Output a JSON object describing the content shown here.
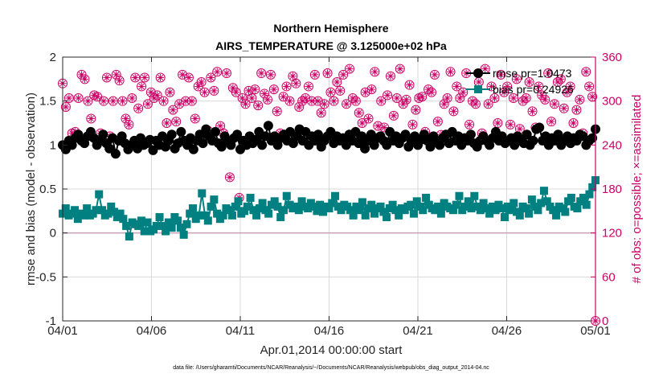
{
  "chart_data": {
    "type": "line",
    "title": "Northern Hemisphere",
    "subtitle": "AIRS_TEMPERATURE @ 3.125000e+02 hPa",
    "xlabel": "Apr.01,2014 00:00:00 start",
    "ylabel": "rmse and bias (model - observation)",
    "y2label": "# of obs: o=possible; ×=assimilated",
    "footnote": "data file: /Users/gharamti/Documents/NCAR/Reanalysis/~/Documents/NCAR/Reanalysis/webpub/obs_diag_output_2014-04.nc",
    "x_ticks": [
      "04/01",
      "04/06",
      "04/11",
      "04/16",
      "04/21",
      "04/26",
      "05/01"
    ],
    "x_tick_days": [
      0,
      5,
      10,
      15,
      20,
      25,
      30
    ],
    "xlim_days": [
      0,
      30
    ],
    "ylim": [
      -1,
      2
    ],
    "y_ticks": [
      "-1",
      "-0.5",
      "0",
      "0.5",
      "1",
      "1.5",
      "2"
    ],
    "y2lim": [
      0,
      360
    ],
    "y2_ticks": [
      "0",
      "60",
      "120",
      "180",
      "240",
      "300",
      "360"
    ],
    "grid": true,
    "legend_position": "top-right",
    "colors": {
      "rmse": "#000000",
      "bias": "#008080",
      "obs": "#cc0066",
      "zero_line": "#c8a0b4",
      "grid": "#d9d9d9"
    },
    "series": [
      {
        "name": "rmse pr=1.0473",
        "axis": "left",
        "values": [
          1.0,
          0.95,
          1.05,
          1.0,
          1.08,
          1.12,
          1.05,
          1.02,
          1.1,
          1.15,
          1.08,
          1.0,
          1.05,
          1.12,
          1.02,
          0.96,
          1.08,
          0.9,
          1.05,
          1.1,
          1.02,
          0.95,
          1.0,
          1.05,
          0.96,
          1.08,
          1.0,
          1.02,
          1.06,
          0.94,
          1.05,
          1.0,
          1.1,
          0.98,
          1.05,
          1.12,
          0.96,
          1.02,
          1.15,
          1.05,
          1.0,
          1.08,
          0.95,
          1.05,
          1.12,
          1.02,
          1.18,
          1.1,
          1.05,
          1.15,
          1.02,
          0.98,
          1.1,
          1.05,
          1.0,
          1.08,
          1.12,
          0.95,
          1.05,
          1.0,
          1.1,
          1.02,
          1.06,
          1.15,
          1.0,
          1.1,
          1.22,
          1.05,
          1.1,
          1.0,
          1.08,
          1.12,
          1.05,
          1.15,
          1.02,
          1.1,
          1.18,
          1.05,
          1.15,
          1.0,
          1.1,
          1.05,
          1.12,
          0.98,
          1.05,
          1.1,
          1.15,
          1.02,
          1.1,
          1.05,
          1.08,
          1.0,
          1.12,
          1.05,
          1.15,
          1.02,
          1.1,
          0.96,
          1.05,
          1.12,
          1.0,
          1.08,
          1.1,
          1.05,
          1.0,
          1.15,
          1.05,
          1.1,
          1.02,
          1.08,
          1.12,
          0.98,
          1.05,
          1.1,
          1.0,
          1.06,
          1.12,
          1.05,
          0.98,
          1.1,
          1.05,
          1.0,
          1.08,
          1.12,
          1.02,
          1.15,
          1.05,
          1.1,
          1.0,
          1.08,
          1.05,
          1.12,
          1.02,
          0.98,
          1.05,
          1.1,
          1.05,
          1.0,
          1.08,
          1.15,
          1.05,
          1.1,
          1.02,
          1.05,
          1.08,
          1.0,
          1.1,
          1.05,
          1.02,
          1.12,
          1.0,
          1.05,
          1.18,
          1.2,
          1.05,
          1.1,
          1.0,
          1.08,
          1.05,
          1.12,
          1.0,
          1.05,
          1.1,
          1.02,
          1.08,
          1.05,
          1.12,
          1.1,
          1.0,
          1.05,
          1.08,
          1.18
        ]
      },
      {
        "name": "bias pr=0.24926",
        "axis": "left",
        "values": [
          0.22,
          0.28,
          0.2,
          0.22,
          0.26,
          0.16,
          0.22,
          0.2,
          0.28,
          0.2,
          0.22,
          0.26,
          0.44,
          0.26,
          0.2,
          0.22,
          0.3,
          0.24,
          0.18,
          0.22,
          0.16,
          0.08,
          -0.04,
          0.12,
          0.1,
          0.08,
          0.14,
          0.02,
          0.12,
          0.02,
          0.04,
          0.08,
          0.18,
          0.08,
          0.02,
          0.12,
          0.06,
          0.18,
          0.14,
          0.06,
          -0.02,
          0.1,
          0.22,
          0.28,
          0.16,
          0.2,
          0.45,
          0.2,
          0.14,
          0.3,
          0.38,
          0.22,
          0.16,
          0.2,
          0.28,
          0.26,
          0.2,
          0.3,
          0.36,
          0.22,
          0.25,
          0.3,
          0.4,
          0.26,
          0.2,
          0.28,
          0.34,
          0.26,
          0.22,
          0.32,
          0.36,
          0.3,
          0.18,
          0.26,
          0.42,
          0.32,
          0.28,
          0.3,
          0.26,
          0.36,
          0.3,
          0.28,
          0.34,
          0.3,
          0.25,
          0.32,
          0.24,
          0.3,
          0.28,
          0.34,
          0.42,
          0.3,
          0.26,
          0.32,
          0.3,
          0.26,
          0.2,
          0.3,
          0.26,
          0.35,
          0.2,
          0.28,
          0.32,
          0.22,
          0.28,
          0.3,
          0.24,
          0.18,
          0.28,
          0.32,
          0.26,
          0.2,
          0.28,
          0.26,
          0.3,
          0.32,
          0.22,
          0.36,
          0.3,
          0.26,
          0.4,
          0.32,
          0.28,
          0.26,
          0.3,
          0.22,
          0.34,
          0.3,
          0.28,
          0.26,
          0.32,
          0.42,
          0.26,
          0.3,
          0.36,
          0.28,
          0.42,
          0.3,
          0.26,
          0.34,
          0.28,
          0.22,
          0.3,
          0.26,
          0.32,
          0.28,
          0.18,
          0.3,
          0.26,
          0.34,
          0.24,
          0.2,
          0.3,
          0.28,
          0.22,
          0.38,
          0.3,
          0.26,
          0.34,
          0.48,
          0.36,
          0.3,
          0.26,
          0.2,
          0.3,
          0.28,
          0.24,
          0.36,
          0.4,
          0.3,
          0.28,
          0.36,
          0.4,
          0.32,
          0.44,
          0.52,
          0.6
        ]
      },
      {
        "name": "# of obs possible",
        "axis": "right",
        "marker": "o",
        "values": [
          324,
          292,
          304,
          256,
          258,
          304,
          336,
          330,
          300,
          276,
          308,
          306,
          256,
          300,
          332,
          252,
          300,
          336,
          328,
          300,
          276,
          268,
          304,
          332,
          290,
          320,
          332,
          296,
          312,
          304,
          308,
          332,
          300,
          270,
          312,
          288,
          272,
          296,
          336,
          300,
          332,
          300,
          276,
          320,
          326,
          312,
          260,
          332,
          314,
          340,
          266,
          256,
          338,
          196,
          318,
          312,
          168,
          304,
          296,
          314,
          304,
          316,
          294,
          338,
          310,
          302,
          336,
          316,
          286,
          256,
          306,
          320,
          300,
          334,
          324,
          292,
          300,
          304,
          320,
          300,
          336,
          300,
          284,
          296,
          338,
          312,
          300,
          326,
          314,
          336,
          296,
          344,
          304,
          300,
          284,
          270,
          312,
          276,
          316,
          340,
          266,
          300,
          264,
          308,
          334,
          280,
          304,
          344,
          296,
          302,
          322,
          268,
          288,
          304,
          306,
          258,
          316,
          312,
          336,
          272,
          254,
          296,
          304,
          340,
          286,
          320,
          304,
          312,
          338,
          268,
          300,
          296,
          326,
          256,
          344,
          296,
          320,
          304,
          270,
          336,
          312,
          320,
          268,
          304,
          330,
          262,
          300,
          304,
          326,
          286,
          264,
          320,
          308,
          302,
          338,
          272,
          296,
          326,
          330,
          290,
          312,
          320,
          270,
          288,
          302,
          256,
          340,
          320,
          306,
          0
        ]
      },
      {
        "name": "# of obs assimilated",
        "axis": "right",
        "marker": "x",
        "values": [
          324,
          292,
          304,
          256,
          258,
          304,
          336,
          330,
          300,
          276,
          308,
          306,
          256,
          300,
          332,
          252,
          300,
          336,
          328,
          300,
          276,
          268,
          304,
          332,
          290,
          320,
          332,
          296,
          312,
          304,
          308,
          332,
          300,
          270,
          312,
          288,
          272,
          296,
          336,
          300,
          332,
          300,
          276,
          320,
          326,
          312,
          260,
          332,
          314,
          340,
          266,
          256,
          338,
          196,
          318,
          312,
          168,
          304,
          296,
          314,
          304,
          316,
          294,
          338,
          310,
          302,
          336,
          316,
          286,
          256,
          306,
          320,
          300,
          334,
          324,
          292,
          300,
          304,
          320,
          300,
          336,
          300,
          284,
          296,
          338,
          312,
          300,
          326,
          314,
          336,
          296,
          344,
          304,
          300,
          284,
          270,
          312,
          276,
          316,
          340,
          266,
          300,
          264,
          308,
          334,
          280,
          304,
          344,
          296,
          302,
          322,
          268,
          288,
          304,
          306,
          258,
          316,
          312,
          336,
          272,
          254,
          296,
          304,
          340,
          286,
          320,
          304,
          312,
          338,
          268,
          300,
          296,
          326,
          256,
          344,
          296,
          320,
          304,
          270,
          336,
          312,
          320,
          268,
          304,
          330,
          262,
          300,
          304,
          326,
          286,
          264,
          320,
          308,
          302,
          338,
          272,
          296,
          326,
          330,
          290,
          312,
          320,
          270,
          288,
          302,
          256,
          340,
          320,
          306,
          0
        ]
      }
    ]
  }
}
